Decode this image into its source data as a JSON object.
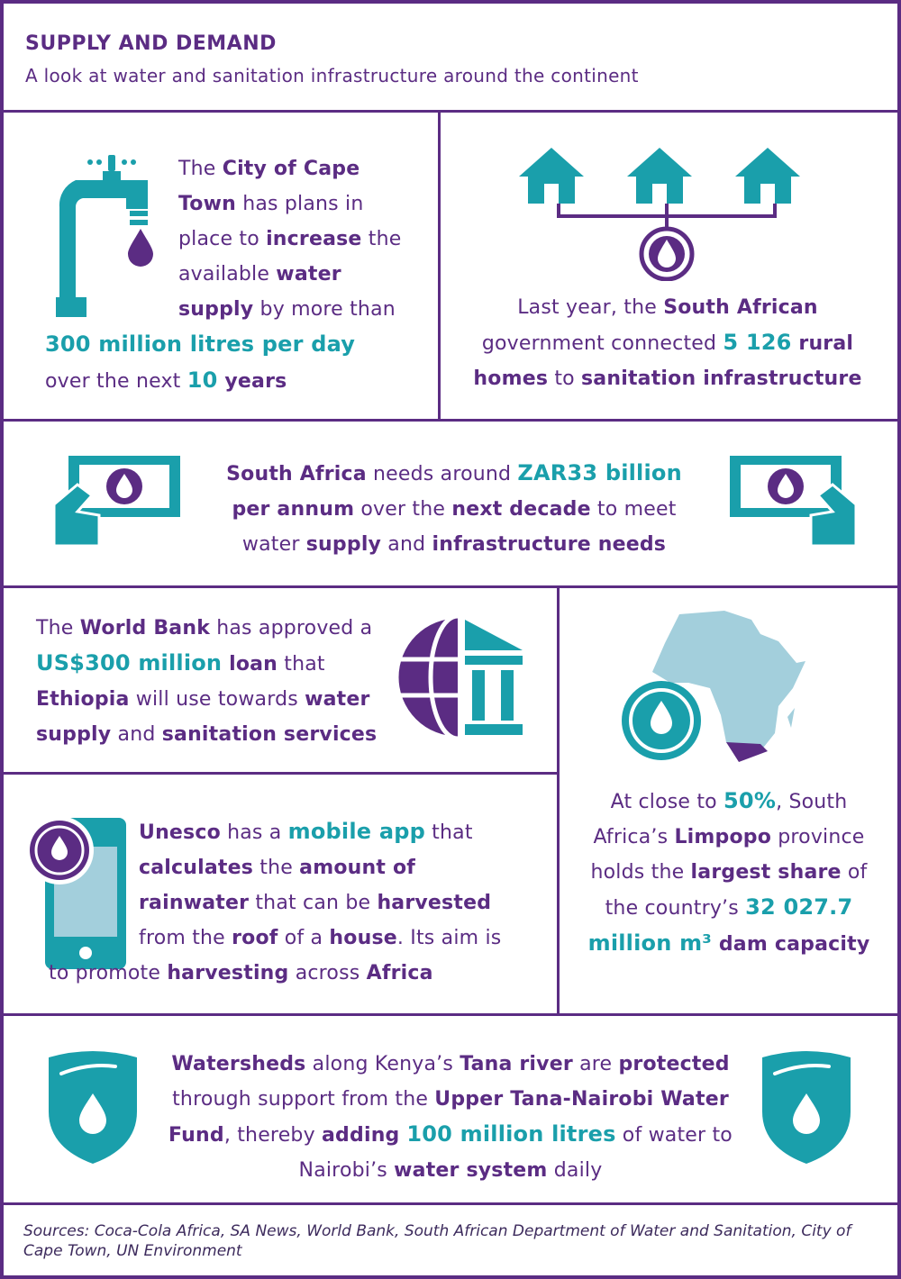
{
  "header": {
    "title": "SUPPLY AND DEMAND",
    "subtitle": "A look at water and sanitation infrastructure around the continent"
  },
  "panels": [
    {
      "text": [
        "The ",
        "City of Cape Town",
        " has plans in place to ",
        "increase",
        " the available ",
        "water supply",
        " by more than ",
        "300 million litres per day",
        " over the next ",
        "10",
        " years"
      ]
    },
    {
      "text": [
        "Last year, the ",
        "South African",
        " government connected ",
        "5 126",
        " rural homes",
        " to ",
        "sanitation infrastructure"
      ]
    },
    {
      "text": [
        "South Africa",
        " needs around ",
        "ZAR33 billion",
        " per annum",
        " over the ",
        "next decade",
        " to meet water ",
        "supply",
        " and ",
        "infrastructure needs"
      ]
    },
    {
      "text": [
        "The ",
        "World Bank",
        " has approved a ",
        "US$300 million",
        " loan",
        " that ",
        "Ethiopia",
        " will use towards ",
        "water supply",
        " and ",
        "sanitation services"
      ]
    },
    {
      "text": [
        "Unesco",
        " has a ",
        "mobile app",
        " that ",
        "calculates",
        " the ",
        "amount of rainwater",
        " that can be ",
        "harvested",
        " from the ",
        "roof",
        " of a ",
        "house",
        ". Its aim is to promote ",
        "harvesting",
        " across ",
        "Africa"
      ]
    },
    {
      "text": [
        "At close to ",
        "50%",
        ", South Africa’s ",
        "Limpopo",
        " province holds the ",
        "largest share",
        " of the country’s ",
        "32 027.7 million m³",
        " dam capacity"
      ]
    },
    {
      "text": [
        "Watersheds",
        " along Kenya’s ",
        "Tana river",
        " are ",
        "protected",
        " through support from the ",
        "Upper Tana-Nairobi Water Fund",
        ", thereby ",
        "adding ",
        "100 million litres",
        " of water to Nairobi’s ",
        "water system",
        " daily"
      ]
    }
  ],
  "footer": {
    "sources": "Sources: Coca-Cola Africa, SA News, World Bank, South African Department of Water and Sanitation, City of Cape Town, UN Environment"
  }
}
